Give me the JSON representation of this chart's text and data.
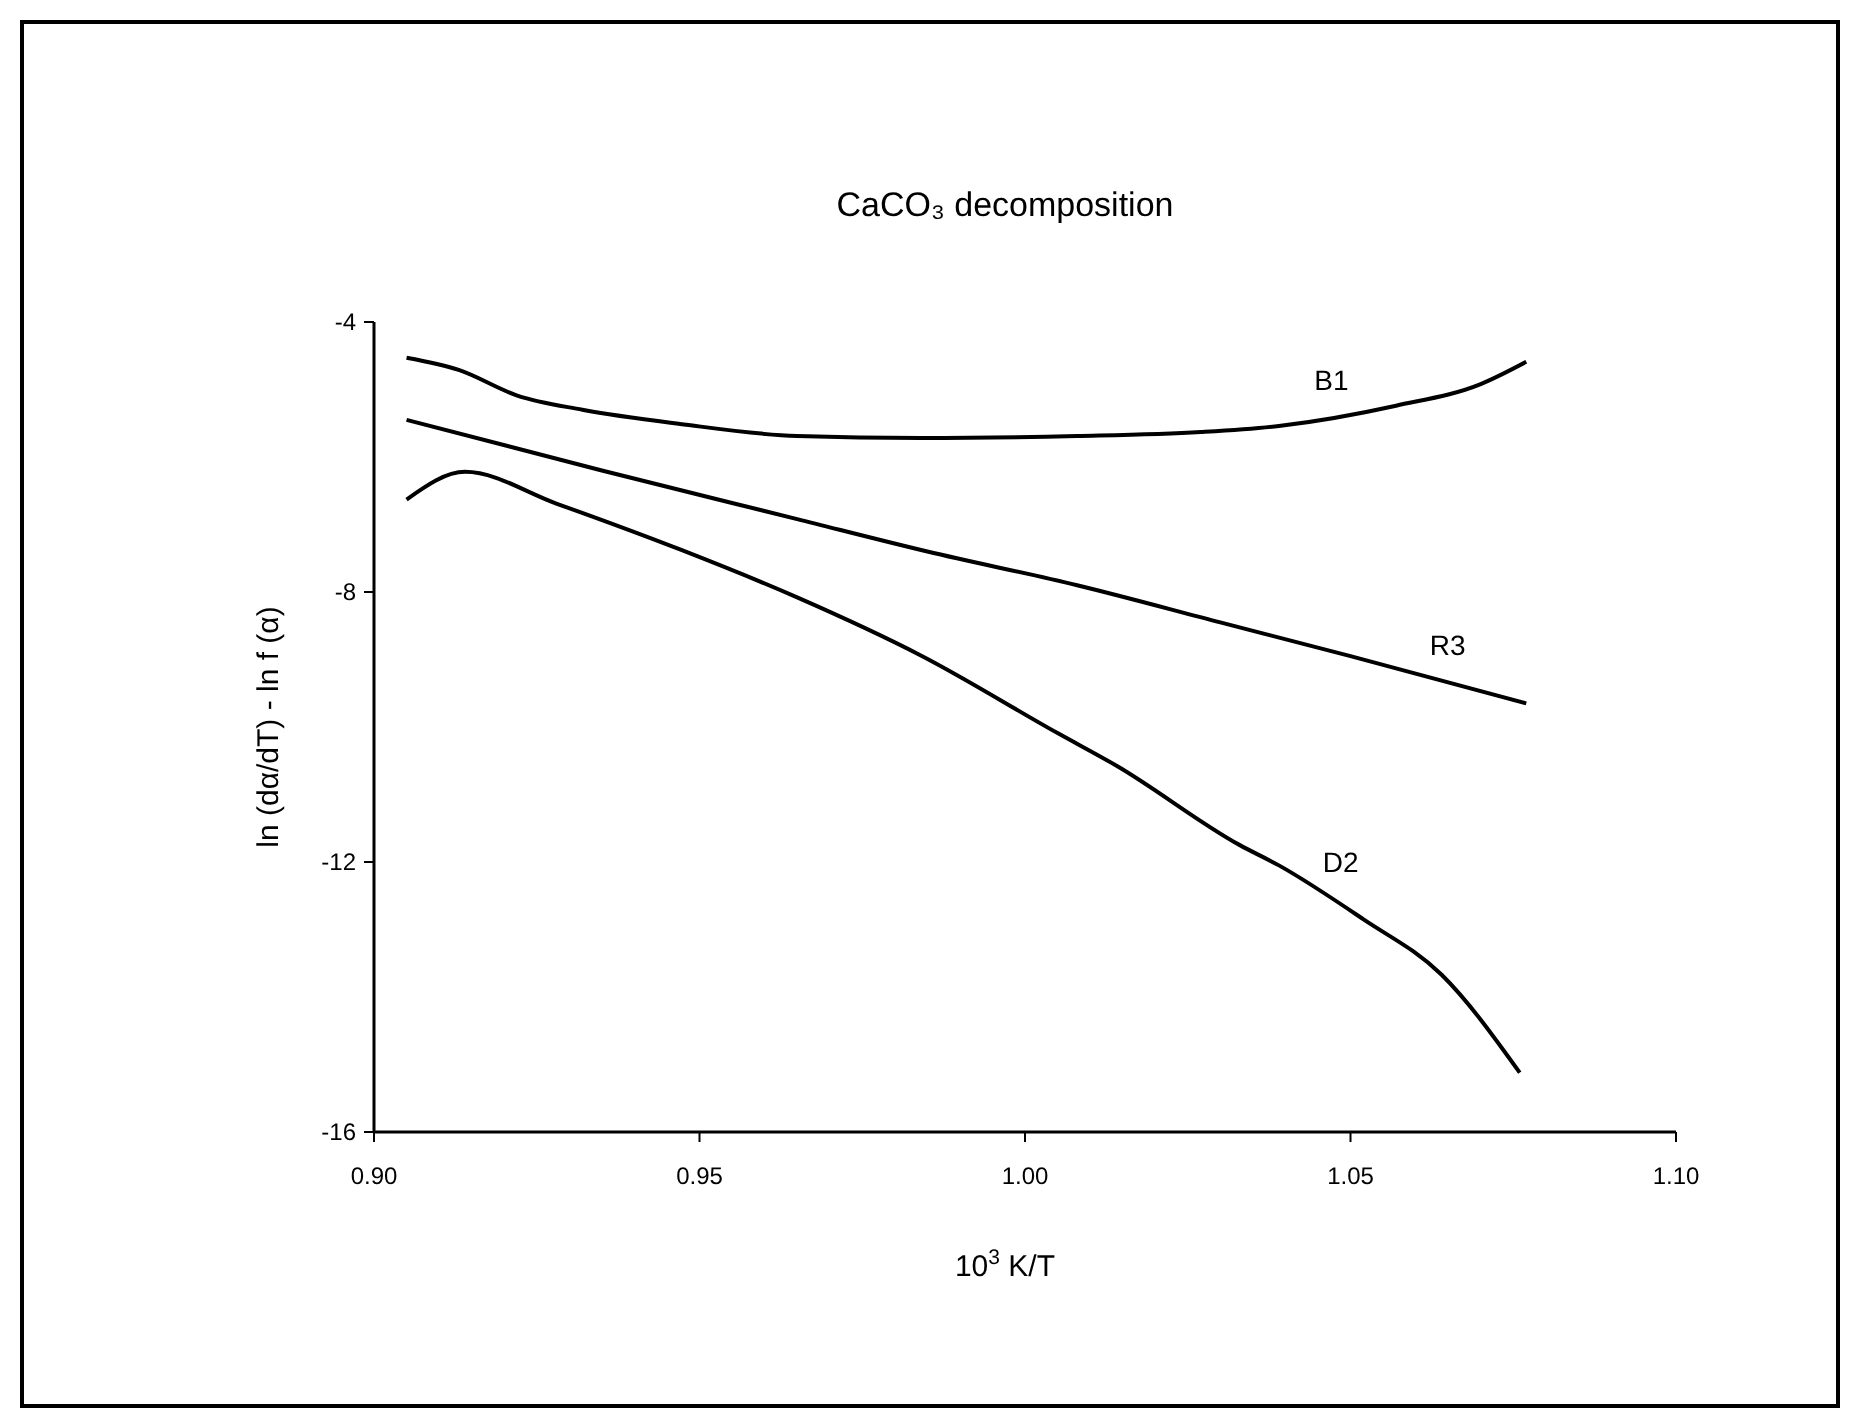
{
  "chart_data": {
    "type": "line",
    "title": "CaCO₃ decomposition",
    "xlabel": "10$^{3}$ K/T",
    "ylabel": "ln (dα/dT) - ln f (α)",
    "xlim": [
      0.9,
      1.1
    ],
    "xticks": [
      {
        "value": 0.9,
        "label": "0.90"
      },
      {
        "value": 0.95,
        "label": "0.95"
      },
      {
        "value": 1.0,
        "label": "1.00"
      },
      {
        "value": 1.05,
        "label": "1.05"
      },
      {
        "value": 1.1,
        "label": "1.10"
      }
    ],
    "ylim": [
      -16,
      -4
    ],
    "yticks": [
      -4,
      -8,
      -12,
      -16
    ],
    "grid": false,
    "marker": "none",
    "line_style": "solid",
    "series": [
      {
        "name": "B1",
        "color": "#000000",
        "x": [
          0.905,
          0.913,
          0.922,
          0.932,
          0.947,
          0.965,
          0.984,
          1.008,
          1.027,
          1.039,
          1.057,
          1.07,
          1.077
        ],
        "values": [
          -4.53,
          -4.71,
          -5.09,
          -5.3,
          -5.51,
          -5.69,
          -5.72,
          -5.69,
          -5.63,
          -5.54,
          -5.24,
          -4.92,
          -4.59
        ]
      },
      {
        "name": "R3",
        "color": "#000000",
        "x": [
          0.905,
          0.935,
          0.965,
          0.985,
          1.008,
          1.03,
          1.05,
          1.077
        ],
        "values": [
          -5.45,
          -6.2,
          -6.92,
          -7.4,
          -7.9,
          -8.45,
          -8.95,
          -9.65
        ]
      },
      {
        "name": "D2",
        "color": "#000000",
        "x": [
          0.905,
          0.914,
          0.928,
          0.947,
          0.965,
          0.984,
          1.005,
          1.014,
          1.033,
          1.039,
          1.052,
          1.064,
          1.076
        ],
        "values": [
          -6.63,
          -6.22,
          -6.69,
          -7.37,
          -8.08,
          -8.94,
          -10.09,
          -10.57,
          -11.75,
          -12.05,
          -12.85,
          -13.67,
          -15.12
        ]
      }
    ]
  }
}
